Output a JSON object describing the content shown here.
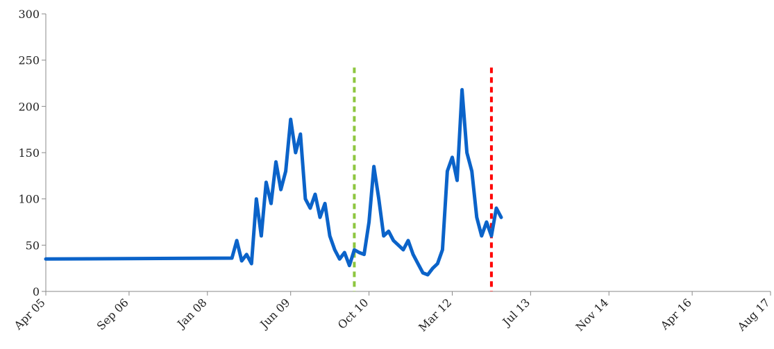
{
  "chart_data": {
    "type": "line",
    "title": "",
    "xlabel": "",
    "ylabel": "",
    "ylim": [
      0,
      300
    ],
    "yticks": [
      0,
      50,
      100,
      150,
      200,
      250,
      300
    ],
    "xticks": [
      {
        "label": "Apr 05",
        "date": "2005-04"
      },
      {
        "label": "Sep 06",
        "date": "2006-09"
      },
      {
        "label": "Jan 08",
        "date": "2008-01"
      },
      {
        "label": "Jun 09",
        "date": "2009-06"
      },
      {
        "label": "Oct 10",
        "date": "2010-10"
      },
      {
        "label": "Mar 12",
        "date": "2012-03"
      },
      {
        "label": "Jul 13",
        "date": "2013-07"
      },
      {
        "label": "Nov 14",
        "date": "2014-11"
      },
      {
        "label": "Apr 16",
        "date": "2016-04"
      },
      {
        "label": "Aug 17",
        "date": "2017-08"
      }
    ],
    "grid": false,
    "series": [
      {
        "color": "#0b63c9",
        "points": [
          [
            "2005-04",
            35
          ],
          [
            "2008-06",
            36
          ],
          [
            "2008-07",
            55
          ],
          [
            "2008-08",
            33
          ],
          [
            "2008-09",
            40
          ],
          [
            "2008-10",
            30
          ],
          [
            "2008-11",
            100
          ],
          [
            "2008-12",
            60
          ],
          [
            "2009-01",
            118
          ],
          [
            "2009-02",
            95
          ],
          [
            "2009-03",
            140
          ],
          [
            "2009-04",
            110
          ],
          [
            "2009-05",
            130
          ],
          [
            "2009-06",
            186
          ],
          [
            "2009-07",
            150
          ],
          [
            "2009-08",
            170
          ],
          [
            "2009-09",
            100
          ],
          [
            "2009-10",
            90
          ],
          [
            "2009-11",
            105
          ],
          [
            "2009-12",
            80
          ],
          [
            "2010-01",
            95
          ],
          [
            "2010-02",
            60
          ],
          [
            "2010-03",
            45
          ],
          [
            "2010-04",
            35
          ],
          [
            "2010-05",
            42
          ],
          [
            "2010-06",
            28
          ],
          [
            "2010-07",
            45
          ],
          [
            "2010-08",
            42
          ],
          [
            "2010-09",
            40
          ],
          [
            "2010-10",
            75
          ],
          [
            "2010-11",
            135
          ],
          [
            "2010-12",
            100
          ],
          [
            "2011-01",
            60
          ],
          [
            "2011-02",
            65
          ],
          [
            "2011-03",
            55
          ],
          [
            "2011-04",
            50
          ],
          [
            "2011-05",
            45
          ],
          [
            "2011-06",
            55
          ],
          [
            "2011-07",
            40
          ],
          [
            "2011-08",
            30
          ],
          [
            "2011-09",
            20
          ],
          [
            "2011-10",
            18
          ],
          [
            "2011-11",
            25
          ],
          [
            "2011-12",
            30
          ],
          [
            "2012-01",
            45
          ],
          [
            "2012-02",
            130
          ],
          [
            "2012-03",
            145
          ],
          [
            "2012-04",
            120
          ],
          [
            "2012-05",
            218
          ],
          [
            "2012-06",
            150
          ],
          [
            "2012-07",
            130
          ],
          [
            "2012-08",
            80
          ],
          [
            "2012-09",
            60
          ],
          [
            "2012-10",
            75
          ],
          [
            "2012-11",
            60
          ],
          [
            "2012-12",
            90
          ],
          [
            "2013-01",
            80
          ]
        ]
      }
    ],
    "reference_lines": [
      {
        "date": "2010-07",
        "color": "#8dc63f",
        "style": "dashed"
      },
      {
        "date": "2012-11",
        "color": "#ff0000",
        "style": "dashed"
      }
    ]
  }
}
